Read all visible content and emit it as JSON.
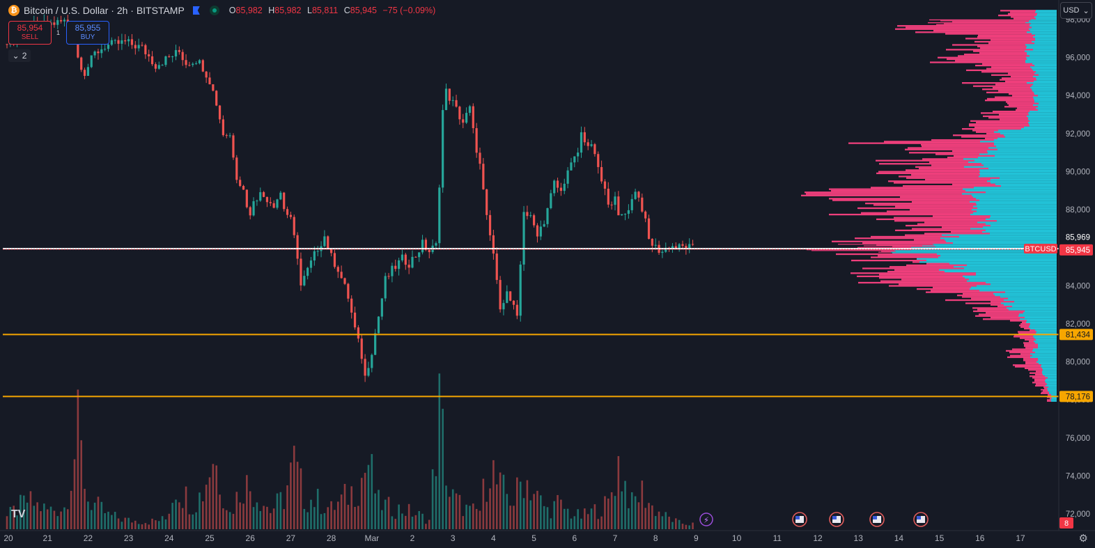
{
  "header": {
    "symbol": "Bitcoin / U.S. Dollar · 2h · BITSTAMP",
    "coin_glyph": "₿",
    "o_label": "O",
    "o": "85,982",
    "h_label": "H",
    "h": "85,982",
    "l_label": "L",
    "l": "85,811",
    "c_label": "C",
    "c": "85,945",
    "change": "−75 (−0.09%)"
  },
  "trade": {
    "sell_price": "85,954",
    "sell_label": "SELL",
    "buy_price": "85,955",
    "buy_label": "BUY",
    "spread": "1"
  },
  "indicators_collapsed": "2",
  "currency": "USD",
  "badges": {
    "last_price": "85,945",
    "symbol_tag": "BTCUSD",
    "ask_price": "85,969",
    "level_upper": "81,434",
    "level_lower": "78,176",
    "events_count": "8"
  },
  "colors": {
    "background": "#161a25",
    "up": "#26a69a",
    "down": "#ef5350",
    "level_line": "#f7a600",
    "vp_up": "#22c3d8",
    "vp_down": "#ef3f7c",
    "price_line": "#f23645"
  },
  "chart_data": {
    "type": "candlestick",
    "symbol": "BTCUSD",
    "timeframe": "2h",
    "ylim": [
      71200,
      98800
    ],
    "y_ticks": [
      "98,000",
      "96,000",
      "94,000",
      "92,000",
      "90,000",
      "88,000",
      "86,000",
      "84,000",
      "82,000",
      "80,000",
      "78,000",
      "76,000",
      "74,000",
      "72,000"
    ],
    "y_tick_values": [
      98000,
      96000,
      94000,
      92000,
      90000,
      88000,
      86000,
      84000,
      82000,
      80000,
      78000,
      76000,
      74000,
      72000
    ],
    "x_ticks": [
      "20",
      "21",
      "22",
      "23",
      "24",
      "25",
      "26",
      "27",
      "28",
      "Mar",
      "2",
      "3",
      "4",
      "5",
      "6",
      "7",
      "8",
      "9",
      "10",
      "11",
      "12",
      "13",
      "14",
      "15",
      "16",
      "17"
    ],
    "x_tick_index": [
      0,
      12,
      24,
      36,
      48,
      60,
      72,
      84,
      96,
      108,
      120,
      132,
      144,
      156,
      168,
      180,
      192,
      204,
      216,
      228,
      240,
      252,
      264,
      276,
      288,
      300
    ],
    "close_path": [
      [
        0,
        96700
      ],
      [
        8,
        97600
      ],
      [
        17,
        97900
      ],
      [
        20,
        97200
      ],
      [
        21,
        96000
      ],
      [
        23,
        95200
      ],
      [
        26,
        96200
      ],
      [
        29,
        96600
      ],
      [
        35,
        96800
      ],
      [
        40,
        96500
      ],
      [
        44,
        95600
      ],
      [
        46,
        95800
      ],
      [
        48,
        96000
      ],
      [
        51,
        96300
      ],
      [
        53,
        95700
      ],
      [
        56,
        95900
      ],
      [
        58,
        95500
      ],
      [
        60,
        94800
      ],
      [
        61,
        94200
      ],
      [
        62,
        93600
      ],
      [
        63,
        92800
      ],
      [
        64,
        92000
      ],
      [
        66,
        91900
      ],
      [
        67,
        90900
      ],
      [
        68,
        89800
      ],
      [
        70,
        89000
      ],
      [
        71,
        88300
      ],
      [
        72,
        87600
      ],
      [
        73,
        88600
      ],
      [
        75,
        88800
      ],
      [
        77,
        88600
      ],
      [
        79,
        88300
      ],
      [
        81,
        88900
      ],
      [
        82,
        88100
      ],
      [
        84,
        87400
      ],
      [
        86,
        85600
      ],
      [
        87,
        84000
      ],
      [
        89,
        84800
      ],
      [
        92,
        86000
      ],
      [
        94,
        86600
      ],
      [
        96,
        85500
      ],
      [
        98,
        84900
      ],
      [
        101,
        83400
      ],
      [
        103,
        81700
      ],
      [
        105,
        80300
      ],
      [
        106,
        79200
      ],
      [
        108,
        80600
      ],
      [
        110,
        82400
      ],
      [
        112,
        84300
      ],
      [
        114,
        84800
      ],
      [
        117,
        85400
      ],
      [
        119,
        85200
      ],
      [
        121,
        85600
      ],
      [
        123,
        86200
      ],
      [
        125,
        85800
      ],
      [
        127,
        86100
      ],
      [
        128,
        89400
      ],
      [
        129,
        93200
      ],
      [
        130,
        94200
      ],
      [
        132,
        93600
      ],
      [
        134,
        92900
      ],
      [
        135,
        92600
      ],
      [
        137,
        93300
      ],
      [
        138,
        92100
      ],
      [
        140,
        90300
      ],
      [
        142,
        87500
      ],
      [
        144,
        85700
      ],
      [
        145,
        84100
      ],
      [
        146,
        83000
      ],
      [
        148,
        83600
      ],
      [
        150,
        82800
      ],
      [
        151,
        82200
      ],
      [
        152,
        85100
      ],
      [
        153,
        88000
      ],
      [
        155,
        87500
      ],
      [
        157,
        86800
      ],
      [
        159,
        87400
      ],
      [
        160,
        88100
      ],
      [
        162,
        89400
      ],
      [
        164,
        88900
      ],
      [
        165,
        89600
      ],
      [
        167,
        90300
      ],
      [
        169,
        91000
      ],
      [
        170,
        92000
      ],
      [
        172,
        91400
      ],
      [
        174,
        91000
      ],
      [
        175,
        90000
      ],
      [
        177,
        89000
      ],
      [
        178,
        88100
      ],
      [
        180,
        88900
      ],
      [
        181,
        87500
      ],
      [
        183,
        87800
      ],
      [
        185,
        88500
      ],
      [
        186,
        89100
      ],
      [
        188,
        88100
      ],
      [
        189,
        87300
      ],
      [
        190,
        86400
      ],
      [
        192,
        86000
      ],
      [
        194,
        85800
      ],
      [
        196,
        86100
      ],
      [
        199,
        86000
      ],
      [
        201,
        86050
      ],
      [
        203,
        85945
      ]
    ],
    "volume_path": [
      [
        0,
        20
      ],
      [
        6,
        45
      ],
      [
        12,
        30
      ],
      [
        17,
        35
      ],
      [
        21,
        150
      ],
      [
        24,
        48
      ],
      [
        30,
        22
      ],
      [
        36,
        14
      ],
      [
        42,
        12
      ],
      [
        47,
        16
      ],
      [
        50,
        70
      ],
      [
        55,
        40
      ],
      [
        58,
        60
      ],
      [
        61,
        120
      ],
      [
        66,
        25
      ],
      [
        70,
        75
      ],
      [
        74,
        55
      ],
      [
        78,
        30
      ],
      [
        82,
        50
      ],
      [
        85,
        104
      ],
      [
        88,
        50
      ],
      [
        92,
        45
      ],
      [
        96,
        32
      ],
      [
        100,
        50
      ],
      [
        104,
        70
      ],
      [
        107,
        106
      ],
      [
        110,
        42
      ],
      [
        113,
        35
      ],
      [
        118,
        30
      ],
      [
        122,
        22
      ],
      [
        125,
        14
      ],
      [
        128,
        190
      ],
      [
        131,
        55
      ],
      [
        134,
        40
      ],
      [
        137,
        28
      ],
      [
        140,
        30
      ],
      [
        143,
        112
      ],
      [
        145,
        70
      ],
      [
        150,
        45
      ],
      [
        153,
        86
      ],
      [
        157,
        50
      ],
      [
        160,
        30
      ],
      [
        163,
        40
      ],
      [
        167,
        25
      ],
      [
        170,
        20
      ],
      [
        174,
        30
      ],
      [
        178,
        40
      ],
      [
        181,
        105
      ],
      [
        185,
        40
      ],
      [
        188,
        60
      ],
      [
        191,
        35
      ],
      [
        195,
        20
      ],
      [
        199,
        10
      ],
      [
        203,
        8
      ]
    ],
    "volume_max": 190,
    "volume_profile_cols": 1240,
    "volume_profile_right": 1517,
    "volume_profile": [
      [
        98500,
        70,
        30
      ],
      [
        98000,
        150,
        40
      ],
      [
        97700,
        210,
        40
      ],
      [
        97200,
        110,
        35
      ],
      [
        96700,
        130,
        40
      ],
      [
        96200,
        150,
        40
      ],
      [
        95700,
        120,
        35
      ],
      [
        95200,
        80,
        30
      ],
      [
        94700,
        110,
        40
      ],
      [
        94200,
        85,
        30
      ],
      [
        93700,
        70,
        30
      ],
      [
        93200,
        95,
        40
      ],
      [
        92700,
        110,
        45
      ],
      [
        92200,
        120,
        80
      ],
      [
        91700,
        240,
        100
      ],
      [
        91200,
        180,
        100
      ],
      [
        90700,
        230,
        120
      ],
      [
        90200,
        250,
        110
      ],
      [
        89700,
        200,
        90
      ],
      [
        89200,
        300,
        120
      ],
      [
        88700,
        270,
        110
      ],
      [
        88200,
        280,
        110
      ],
      [
        87700,
        210,
        100
      ],
      [
        87200,
        200,
        110
      ],
      [
        86700,
        260,
        150
      ],
      [
        86200,
        280,
        190
      ],
      [
        85950,
        290,
        220
      ],
      [
        85700,
        260,
        190
      ],
      [
        85200,
        230,
        150
      ],
      [
        84700,
        240,
        120
      ],
      [
        84200,
        230,
        110
      ],
      [
        83700,
        160,
        80
      ],
      [
        83200,
        110,
        70
      ],
      [
        82700,
        100,
        50
      ],
      [
        82200,
        60,
        40
      ],
      [
        81700,
        50,
        30
      ],
      [
        81200,
        40,
        30
      ],
      [
        80700,
        60,
        35
      ],
      [
        80200,
        55,
        25
      ],
      [
        79700,
        40,
        20
      ],
      [
        79200,
        30,
        15
      ],
      [
        78700,
        20,
        12
      ],
      [
        78300,
        12,
        8
      ]
    ],
    "levels": [
      {
        "price": 81434,
        "label": "81,434"
      },
      {
        "price": 78176,
        "label": "78,176"
      }
    ],
    "last_price": 85945,
    "events_x": [
      "Mar 11",
      "Mar 12",
      "Mar 13",
      "Mar 14"
    ]
  }
}
